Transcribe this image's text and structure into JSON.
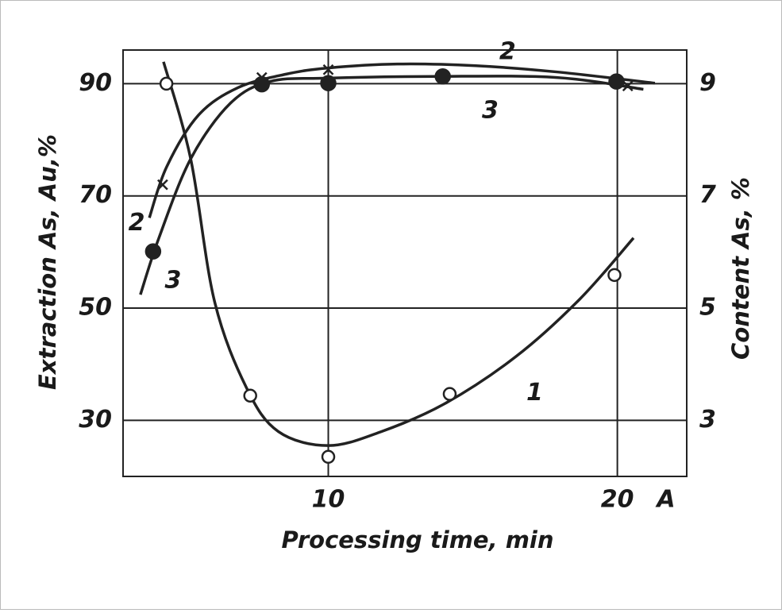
{
  "chart_data": {
    "type": "line",
    "x_label": "Processing time, min",
    "y_label": "Extraction As, Au,%",
    "y2_label": "Content As, %",
    "x_end_label": "A",
    "xlim": [
      2.9,
      22.4
    ],
    "xticks": [
      10,
      20
    ],
    "ylim": [
      20,
      96
    ],
    "yticks": [
      30,
      50,
      70,
      90
    ],
    "y2lim": [
      2,
      9.6
    ],
    "y2ticks": [
      3,
      5,
      7,
      9
    ],
    "grid": true,
    "series": [
      {
        "name": "1",
        "axis": "y2",
        "color": "#222222",
        "marker": "circle-open",
        "x": [
          4.4,
          7.3,
          10,
          14.2,
          19.9
        ],
        "values": [
          9.0,
          3.44,
          2.35,
          3.47,
          5.59
        ],
        "curve_x": [
          4.3,
          5.24,
          6.06,
          7.17,
          8.27,
          10,
          11.84,
          14.04,
          16.5,
          18.7,
          20.56
        ],
        "curve_values": [
          9.39,
          7.66,
          5.13,
          3.58,
          2.8,
          2.55,
          2.8,
          3.3,
          4.14,
          5.16,
          6.25
        ],
        "label_positions": [
          [
            17.14,
            3.48
          ]
        ]
      },
      {
        "name": "2",
        "color": "#222222",
        "marker": "cross",
        "x": [
          4.27,
          7.7,
          10,
          20.36
        ],
        "values": [
          72.0,
          91.1,
          92.5,
          89.6
        ],
        "curve_x": [
          3.81,
          4.41,
          5.51,
          6.88,
          8.54,
          10,
          12.39,
          15.1,
          17.9,
          21.3
        ],
        "curve_values": [
          66.1,
          75.2,
          84.4,
          89.3,
          91.7,
          92.8,
          93.5,
          93.2,
          92.1,
          90.1
        ],
        "label_positions": [
          [
            3.37,
            65.1
          ],
          [
            16.2,
            95.6
          ]
        ]
      },
      {
        "name": "3",
        "color": "#222222",
        "marker": "circle-filled",
        "x": [
          3.94,
          7.7,
          10,
          13.96,
          19.97
        ],
        "values": [
          60.1,
          89.9,
          90.1,
          91.3,
          90.4
        ],
        "curve_x": [
          3.5,
          4.14,
          5.24,
          6.61,
          7.99,
          10,
          13.76,
          17.9,
          20.9
        ],
        "curve_values": [
          52.4,
          62.5,
          76.6,
          86.5,
          90.4,
          91.0,
          91.3,
          91.1,
          89.0
        ],
        "label_positions": [
          [
            4.63,
            54.8
          ],
          [
            15.6,
            85.1
          ]
        ]
      }
    ]
  }
}
